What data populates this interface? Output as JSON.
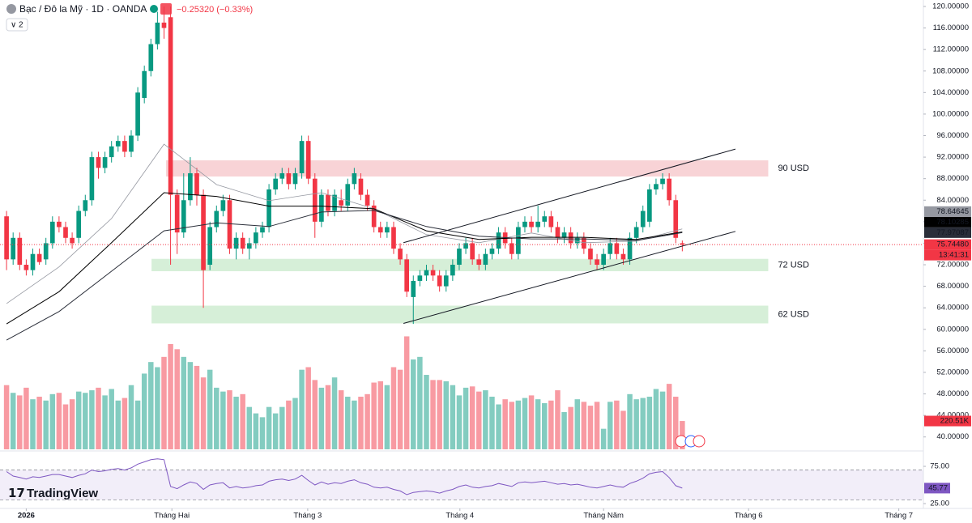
{
  "header": {
    "symbol": "Bạc / Đô la Mỹ · 1D · OANDA",
    "change": "−0.25320 (−0.33%)",
    "indicator_count": "2"
  },
  "logo": "TradingView",
  "chart_data": {
    "type": "candlestick",
    "up_color": "#089981",
    "down_color": "#f23645",
    "open": [
      81,
      73,
      77,
      72,
      71,
      74,
      73,
      76,
      80,
      79,
      77,
      77,
      82,
      84,
      92,
      90,
      92,
      94,
      95,
      93,
      96,
      103,
      108,
      113,
      117,
      118,
      85,
      78,
      84,
      89,
      85,
      72,
      79,
      82,
      84,
      75,
      77,
      75,
      76,
      78,
      79,
      86,
      88,
      89,
      87,
      89,
      95,
      88,
      80,
      85,
      82,
      84,
      83,
      87,
      88,
      85,
      83,
      79,
      78,
      79,
      75,
      73,
      66,
      69,
      70,
      71,
      70,
      68,
      70,
      72,
      75,
      76,
      73,
      72,
      74,
      75,
      78,
      76,
      74,
      79,
      80,
      79,
      80,
      81,
      79,
      77,
      78,
      76,
      77,
      75,
      73,
      72,
      74,
      76,
      74,
      73,
      77,
      79,
      80,
      86,
      87,
      88,
      84,
      76
    ],
    "high": [
      82,
      78,
      78,
      73,
      75,
      75,
      77,
      81,
      81,
      80,
      78,
      83,
      85,
      93,
      93,
      93,
      95,
      96,
      96,
      97,
      105,
      109,
      114,
      119,
      120,
      120,
      86,
      89,
      92,
      90,
      86,
      80,
      83,
      85,
      85,
      78,
      78,
      77,
      79,
      80,
      87,
      89,
      90,
      90,
      90,
      96,
      96,
      89,
      86,
      86,
      86,
      86,
      88,
      90,
      89,
      86,
      84,
      80,
      80,
      80,
      76,
      74,
      70,
      71,
      72,
      72,
      71,
      71,
      73,
      76,
      77,
      77,
      74,
      75,
      76,
      79,
      79,
      77,
      80,
      81,
      81,
      83,
      82,
      82,
      80,
      79,
      79,
      78,
      78,
      76,
      74,
      75,
      77,
      77,
      75,
      78,
      80,
      83,
      87,
      88,
      89,
      89,
      85,
      76.5
    ],
    "low": [
      71,
      72,
      71,
      70,
      70,
      72,
      72,
      75,
      78,
      76,
      75,
      76,
      81,
      83,
      88,
      89,
      91,
      93,
      92,
      92,
      95,
      102,
      107,
      112,
      114,
      72,
      74,
      77,
      83,
      83,
      64,
      71,
      78,
      81,
      74,
      73,
      74,
      73,
      75,
      77,
      78,
      85,
      87,
      86,
      86,
      88,
      87,
      77,
      79,
      81,
      81,
      82,
      82,
      86,
      84,
      82,
      78,
      77,
      77,
      74,
      72,
      66,
      61,
      68,
      69,
      69,
      67,
      67,
      69,
      71,
      74,
      72,
      71,
      71,
      73,
      74,
      75,
      73,
      73,
      78,
      78,
      78,
      79,
      78,
      76,
      76,
      75,
      75,
      74,
      72,
      71,
      71,
      73,
      73,
      72,
      72,
      76,
      78,
      79,
      85,
      86,
      83,
      76,
      74.5
    ],
    "close": [
      73,
      77,
      72,
      71,
      74,
      72.5,
      76,
      80,
      79,
      77,
      76,
      82,
      84,
      92,
      90,
      92,
      94,
      95,
      93,
      96,
      104,
      108,
      113,
      117,
      116,
      85,
      78,
      84,
      89,
      85,
      71,
      79,
      82,
      84,
      75,
      77,
      75,
      76,
      78,
      79,
      86,
      88,
      89,
      87,
      89,
      95,
      88,
      80,
      85,
      82,
      85,
      83,
      87,
      89,
      85,
      83,
      79,
      78,
      79,
      75,
      73,
      67,
      69,
      70,
      71,
      70,
      68,
      70,
      72,
      75,
      76,
      73,
      72,
      74,
      75,
      78,
      76,
      74,
      79,
      80,
      79,
      80,
      81,
      79,
      77,
      78,
      76,
      77,
      75,
      73,
      72,
      74,
      76,
      74,
      73,
      77,
      79,
      82,
      86,
      87,
      88,
      84,
      77,
      75.7448
    ],
    "xlim": [
      -1,
      139.75
    ],
    "xticks": [
      {
        "value": 3,
        "label": "2026"
      },
      {
        "value": 25.2,
        "label": "Tháng Hai"
      },
      {
        "value": 45.9,
        "label": "Tháng 3"
      },
      {
        "value": 69.1,
        "label": "Tháng 4"
      },
      {
        "value": 91,
        "label": "Tháng Năm"
      },
      {
        "value": 113.1,
        "label": "Tháng 6"
      },
      {
        "value": 136,
        "label": "Tháng 7"
      }
    ],
    "ylim": [
      37.7,
      121.2
    ],
    "yticks": [
      {
        "value": 120,
        "label": "120.00000"
      },
      {
        "value": 116,
        "label": "116.00000"
      },
      {
        "value": 112,
        "label": "112.00000"
      },
      {
        "value": 108,
        "label": "108.00000"
      },
      {
        "value": 104,
        "label": "104.00000"
      },
      {
        "value": 100,
        "label": "100.00000"
      },
      {
        "value": 96,
        "label": "96.00000"
      },
      {
        "value": 92,
        "label": "92.00000"
      },
      {
        "value": 88,
        "label": "88.00000"
      },
      {
        "value": 84,
        "label": "84.00000"
      },
      {
        "value": 80,
        "label": "80.00000"
      },
      {
        "value": 76,
        "label": "76.00000"
      },
      {
        "value": 72,
        "label": "72.00000"
      },
      {
        "value": 68,
        "label": "68.00000"
      },
      {
        "value": 64,
        "label": "64.00000"
      },
      {
        "value": 60,
        "label": "60.00000"
      },
      {
        "value": 56,
        "label": "56.00000"
      },
      {
        "value": 52,
        "label": "52.00000"
      },
      {
        "value": 48,
        "label": "48.00000"
      },
      {
        "value": 44,
        "label": "44.00000"
      },
      {
        "value": 40,
        "label": "40.00000"
      }
    ],
    "last_price": {
      "value": 75.7448,
      "label": "75.74480",
      "countdown": "13:41:31"
    },
    "moving_averages": [
      {
        "color": "#9598a1",
        "x": [
          0,
          8,
          16,
          24,
          32,
          40,
          48,
          56,
          64,
          72,
          80,
          88,
          96,
          103
        ],
        "values": [
          64.8,
          71.6,
          80.6,
          94.4,
          86.9,
          83.9,
          85.4,
          82.4,
          77.6,
          76.1,
          77.9,
          76.1,
          76.4,
          78.64645
        ],
        "last_label": "78.64645"
      },
      {
        "color": "#000000",
        "x": [
          0,
          8,
          16,
          24,
          32,
          40,
          48,
          56,
          64,
          72,
          80,
          88,
          96,
          103
        ],
        "values": [
          61,
          67,
          76.1,
          85.4,
          84.7,
          82.9,
          82.9,
          82.4,
          78.3,
          76.7,
          77.1,
          77.1,
          76.7,
          78.10285
        ],
        "last_label": "78.10285"
      },
      {
        "color": "#2a2e39",
        "x": [
          0,
          8,
          16,
          24,
          32,
          40,
          48,
          56,
          64,
          72,
          80,
          88,
          96,
          103
        ],
        "values": [
          58,
          63.3,
          70.8,
          78.3,
          79.8,
          79.1,
          81.8,
          82.1,
          79.1,
          77.3,
          76.8,
          76.8,
          76.5,
          77.97087
        ],
        "last_label": "77.97087"
      }
    ],
    "zones": [
      {
        "label": "90 USD",
        "from": 88.4,
        "to": 91.4,
        "x": [
          24.3,
          116.1
        ],
        "color": "#f8d3d6"
      },
      {
        "label": "72 USD",
        "from": 70.8,
        "to": 73.1,
        "x": [
          22.1,
          116.1
        ],
        "color": "#d6efd8"
      },
      {
        "label": "62 USD",
        "from": 61.1,
        "to": 64.4,
        "x": [
          22.1,
          116.1
        ],
        "color": "#d6efd8"
      }
    ],
    "trendlines": [
      {
        "x": [
          60.5,
          111.1
        ],
        "y": [
          76.1,
          93.5
        ]
      },
      {
        "x": [
          60.5,
          111.1
        ],
        "y": [
          61.1,
          78.2
        ]
      }
    ],
    "volume": {
      "values": [
        500000,
        440000,
        420000,
        480000,
        390000,
        410000,
        380000,
        430000,
        440000,
        350000,
        390000,
        450000,
        440000,
        460000,
        480000,
        420000,
        470000,
        380000,
        400000,
        500000,
        380000,
        590000,
        680000,
        640000,
        720000,
        820000,
        780000,
        720000,
        680000,
        650000,
        560000,
        620000,
        480000,
        450000,
        460000,
        410000,
        430000,
        330000,
        280000,
        250000,
        330000,
        280000,
        330000,
        380000,
        400000,
        620000,
        640000,
        540000,
        480000,
        500000,
        560000,
        460000,
        410000,
        380000,
        410000,
        430000,
        520000,
        530000,
        500000,
        640000,
        620000,
        880000,
        700000,
        720000,
        580000,
        540000,
        540000,
        530000,
        500000,
        420000,
        480000,
        490000,
        450000,
        460000,
        410000,
        350000,
        390000,
        370000,
        380000,
        400000,
        420000,
        390000,
        360000,
        380000,
        460000,
        290000,
        330000,
        390000,
        370000,
        340000,
        370000,
        160000,
        370000,
        380000,
        300000,
        430000,
        390000,
        400000,
        410000,
        470000,
        450000,
        510000,
        410000,
        220510
      ],
      "vlim": [
        0,
        1400000
      ],
      "last_label": "220.51K"
    },
    "rsi": {
      "color": "#7e57c2",
      "values": [
        68,
        62,
        60,
        58,
        61,
        60,
        62,
        64,
        64,
        62,
        60,
        63,
        65,
        70,
        68,
        69,
        71,
        72,
        70,
        73,
        78,
        81,
        84,
        85,
        84,
        48,
        45,
        50,
        54,
        52,
        44,
        50,
        52,
        53,
        46,
        48,
        46,
        47,
        49,
        50,
        55,
        57,
        58,
        56,
        58,
        63,
        56,
        50,
        54,
        51,
        53,
        52,
        55,
        57,
        53,
        51,
        47,
        46,
        47,
        44,
        42,
        37,
        40,
        41,
        42,
        41,
        39,
        42,
        44,
        48,
        50,
        47,
        46,
        48,
        49,
        52,
        50,
        48,
        53,
        54,
        53,
        54,
        55,
        53,
        51,
        52,
        50,
        51,
        49,
        47,
        46,
        48,
        50,
        48,
        47,
        52,
        55,
        59,
        65,
        67,
        68,
        60,
        49,
        45.77
      ],
      "ylim": [
        18.5,
        94.6
      ],
      "yticks": [
        {
          "value": 75,
          "label": "75.00"
        },
        {
          "value": 25,
          "label": "25.00"
        }
      ],
      "bands": [
        70,
        30
      ],
      "last_label": "45.77"
    }
  }
}
